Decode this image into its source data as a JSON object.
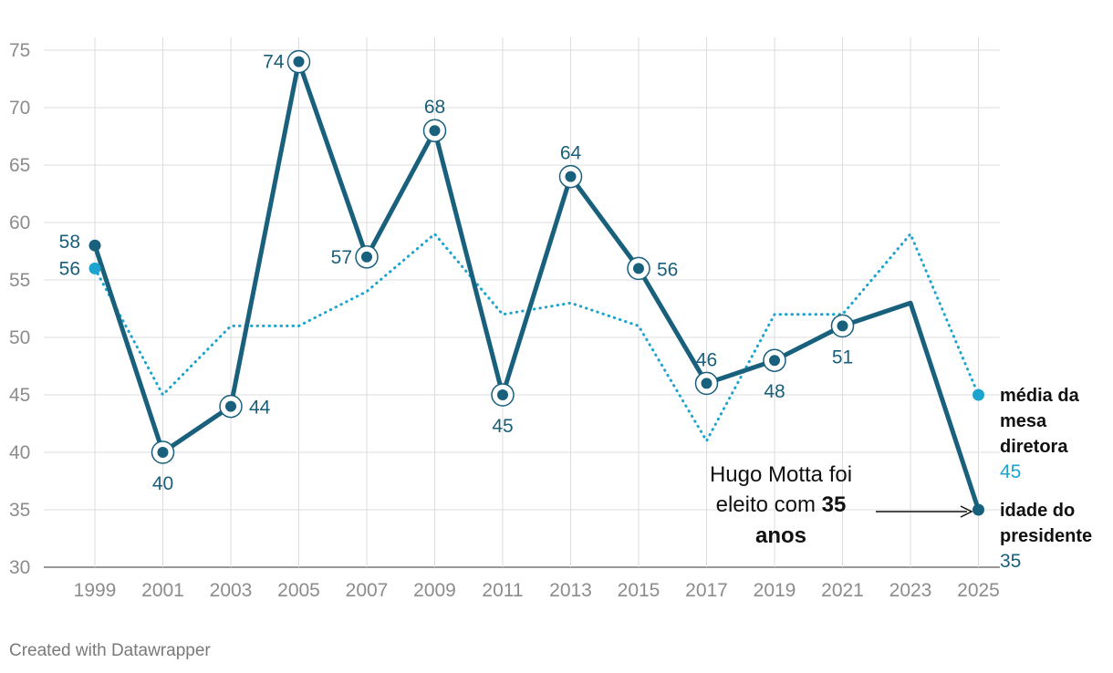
{
  "colors": {
    "president": "#19607c",
    "mesa": "#1ca4cf",
    "grid": "#dcdcdc",
    "tick": "#8c8c8c",
    "annotation": "#111111"
  },
  "footer": {
    "credit": "Created with Datawrapper"
  },
  "annotation": {
    "line1": "Hugo Motta foi",
    "line2_prefix": "eleito com ",
    "line2_bold": "35",
    "line3_bold": "anos"
  },
  "legend": {
    "mesa_line1": "média da",
    "mesa_line2": "mesa",
    "mesa_line3": "diretora",
    "mesa_value": "45",
    "president_line1": "idade do",
    "president_line2": "presidente",
    "president_value": "35"
  },
  "chart_data": {
    "type": "line",
    "title": "",
    "xlabel": "",
    "ylabel": "",
    "ylim": [
      30,
      75
    ],
    "yticks": [
      30,
      35,
      40,
      45,
      50,
      55,
      60,
      65,
      70,
      75
    ],
    "categories": [
      "1999",
      "2001",
      "2003",
      "2005",
      "2007",
      "2009",
      "2011",
      "2013",
      "2015",
      "2017",
      "2019",
      "2021",
      "2023",
      "2025"
    ],
    "series": [
      {
        "name": "idade do presidente",
        "style": "solid",
        "values": [
          58,
          40,
          44,
          74,
          57,
          68,
          45,
          64,
          56,
          46,
          48,
          51,
          53,
          35
        ],
        "labels": [
          "58",
          "40",
          "44",
          "74",
          "57",
          "68",
          "45",
          "64",
          "56",
          "46",
          "48",
          "51",
          null,
          null
        ],
        "label_positions": [
          "left",
          "below",
          "right",
          "left",
          "left",
          "above",
          "below",
          "above",
          "right",
          "above",
          "below",
          "below",
          null,
          null
        ],
        "ringed": [
          false,
          true,
          true,
          true,
          true,
          true,
          true,
          true,
          true,
          true,
          true,
          true,
          false,
          false
        ]
      },
      {
        "name": "média da mesa diretora",
        "style": "dotted",
        "values": [
          56,
          45,
          51,
          51,
          54,
          59,
          52,
          53,
          51,
          41,
          52,
          52,
          59,
          45
        ],
        "labels": [
          "56",
          null,
          null,
          null,
          null,
          null,
          null,
          null,
          null,
          null,
          null,
          null,
          null,
          null
        ],
        "label_positions": [
          "left",
          null,
          null,
          null,
          null,
          null,
          null,
          null,
          null,
          null,
          null,
          null,
          null,
          null
        ]
      }
    ]
  }
}
